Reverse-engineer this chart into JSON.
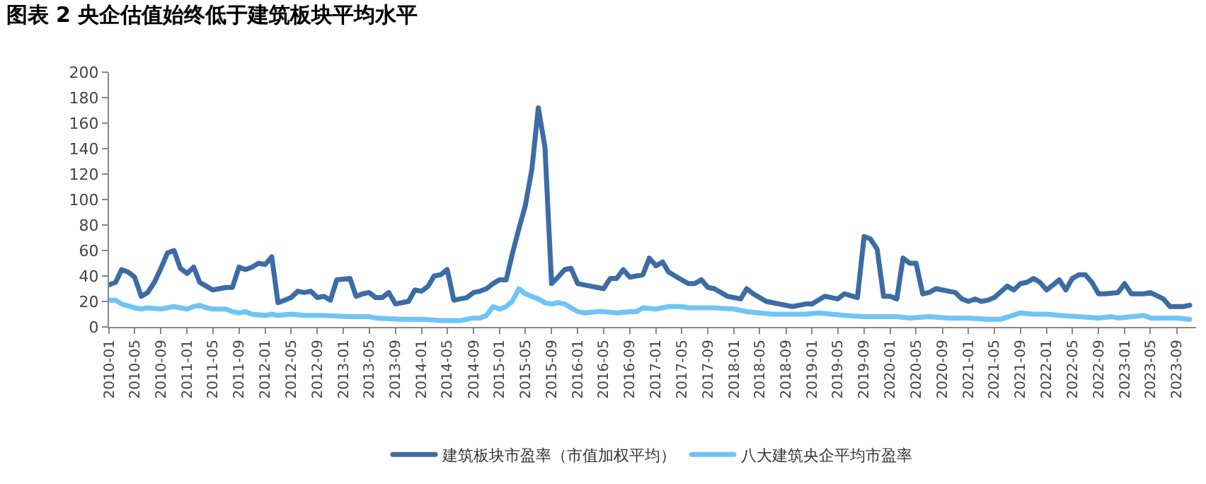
{
  "chart_data": {
    "type": "line",
    "title": "图表 2 央企估值始终低于建筑板块平均水平",
    "series": [
      {
        "name": "建筑板块市盈率（市值加权平均）",
        "color": "#3c6ca5",
        "x": [
          "2010-01",
          "2010-02",
          "2010-03",
          "2010-04",
          "2010-05",
          "2010-06",
          "2010-07",
          "2010-08",
          "2010-09",
          "2010-10",
          "2010-11",
          "2010-12",
          "2011-01",
          "2011-02",
          "2011-03",
          "2011-04",
          "2011-05",
          "2011-06",
          "2011-07",
          "2011-08",
          "2011-09",
          "2011-10",
          "2011-11",
          "2011-12",
          "2012-01",
          "2012-02",
          "2012-03",
          "2012-04",
          "2012-05",
          "2012-06",
          "2012-07",
          "2012-08",
          "2012-09",
          "2012-10",
          "2012-11",
          "2012-12",
          "2013-02",
          "2013-03",
          "2013-04",
          "2013-05",
          "2013-06",
          "2013-07",
          "2013-08",
          "2013-09",
          "2013-10",
          "2013-11",
          "2013-12",
          "2014-01",
          "2014-02",
          "2014-03",
          "2014-04",
          "2014-05",
          "2014-06",
          "2014-07",
          "2014-08",
          "2014-09",
          "2014-10",
          "2014-11",
          "2014-12",
          "2015-01",
          "2015-02",
          "2015-03",
          "2015-04",
          "2015-05",
          "2015-06",
          "2015-07",
          "2015-08",
          "2015-09",
          "2015-10",
          "2015-11",
          "2015-12",
          "2016-01",
          "2016-02",
          "2016-03",
          "2016-05",
          "2016-06",
          "2016-07",
          "2016-08",
          "2016-09",
          "2016-11",
          "2016-12",
          "2017-01",
          "2017-02",
          "2017-03",
          "2017-05",
          "2017-06",
          "2017-07",
          "2017-08",
          "2017-09",
          "2017-10",
          "2017-11",
          "2017-12",
          "2018-02",
          "2018-03",
          "2018-04",
          "2018-05",
          "2018-06",
          "2018-07",
          "2018-08",
          "2018-10",
          "2018-12",
          "2019-01",
          "2019-03",
          "2019-05",
          "2019-06",
          "2019-08",
          "2019-09",
          "2019-10",
          "2019-11",
          "2019-12",
          "2020-01",
          "2020-02",
          "2020-03",
          "2020-04",
          "2020-05",
          "2020-06",
          "2020-07",
          "2020-08",
          "2020-09",
          "2020-10",
          "2020-11",
          "2020-12",
          "2021-01",
          "2021-02",
          "2021-03",
          "2021-04",
          "2021-05",
          "2021-07",
          "2021-08",
          "2021-09",
          "2021-10",
          "2021-11",
          "2021-12",
          "2022-01",
          "2022-02",
          "2022-03",
          "2022-04",
          "2022-05",
          "2022-06",
          "2022-07",
          "2022-08",
          "2022-09",
          "2022-10",
          "2022-12",
          "2023-01",
          "2023-02",
          "2023-04",
          "2023-05",
          "2023-07",
          "2023-08",
          "2023-10",
          "2023-11"
        ],
        "values": [
          33,
          35,
          45,
          43,
          39,
          24,
          27,
          35,
          46,
          58,
          60,
          46,
          42,
          47,
          35,
          32,
          29,
          30,
          31,
          31,
          47,
          45,
          47,
          50,
          49,
          55,
          19,
          21,
          23,
          28,
          27,
          28,
          23,
          24,
          21,
          37,
          38,
          24,
          26,
          27,
          23,
          23,
          27,
          18,
          19,
          20,
          29,
          28,
          32,
          40,
          41,
          45,
          21,
          22,
          23,
          27,
          28,
          30,
          34,
          37,
          37,
          57,
          77,
          95,
          124,
          172,
          141,
          34,
          39,
          45,
          46,
          34,
          33,
          32,
          30,
          38,
          38,
          45,
          39,
          41,
          54,
          48,
          51,
          43,
          37,
          34,
          34,
          37,
          31,
          30,
          27,
          24,
          22,
          30,
          26,
          23,
          20,
          19,
          18,
          16,
          18,
          18,
          24,
          22,
          26,
          23,
          71,
          69,
          61,
          24,
          24,
          22,
          54,
          50,
          50,
          26,
          27,
          30,
          29,
          28,
          27,
          22,
          20,
          22,
          20,
          21,
          23,
          32,
          29,
          34,
          35,
          38,
          35,
          29,
          33,
          37,
          29,
          38,
          41,
          41,
          35,
          26,
          26,
          27,
          34,
          26,
          26,
          27,
          22,
          16,
          16,
          17
        ]
      },
      {
        "name": "八大建筑央企平均市盈率",
        "color": "#6fc4f5",
        "x": [
          "2010-01",
          "2010-02",
          "2010-03",
          "2010-05",
          "2010-06",
          "2010-07",
          "2010-09",
          "2010-10",
          "2010-11",
          "2010-12",
          "2011-01",
          "2011-02",
          "2011-03",
          "2011-04",
          "2011-05",
          "2011-06",
          "2011-07",
          "2011-08",
          "2011-09",
          "2011-10",
          "2011-11",
          "2012-01",
          "2012-02",
          "2012-03",
          "2012-05",
          "2012-07",
          "2012-10",
          "2013-02",
          "2013-05",
          "2013-06",
          "2013-10",
          "2014-01",
          "2014-04",
          "2014-07",
          "2014-09",
          "2014-10",
          "2014-11",
          "2014-12",
          "2015-01",
          "2015-02",
          "2015-03",
          "2015-04",
          "2015-05",
          "2015-07",
          "2015-08",
          "2015-09",
          "2015-10",
          "2015-11",
          "2016-01",
          "2016-02",
          "2016-04",
          "2016-05",
          "2016-07",
          "2016-09",
          "2016-10",
          "2016-11",
          "2017-01",
          "2017-03",
          "2017-05",
          "2017-06",
          "2017-08",
          "2017-10",
          "2018-01",
          "2018-03",
          "2018-05",
          "2018-07",
          "2018-10",
          "2018-12",
          "2019-02",
          "2019-04",
          "2019-06",
          "2019-09",
          "2019-11",
          "2020-02",
          "2020-04",
          "2020-07",
          "2020-10",
          "2021-01",
          "2021-04",
          "2021-06",
          "2021-09",
          "2021-11",
          "2022-01",
          "2022-03",
          "2022-06",
          "2022-09",
          "2022-11",
          "2022-12",
          "2023-04",
          "2023-05",
          "2023-09",
          "2023-11"
        ],
        "values": [
          21,
          21,
          18,
          15,
          14,
          15,
          14,
          15,
          16,
          15,
          14,
          16,
          17,
          15,
          14,
          14,
          14,
          12,
          11,
          12,
          10,
          9,
          10,
          9,
          10,
          9,
          9,
          8,
          8,
          7,
          6,
          6,
          5,
          5,
          7,
          7,
          9,
          16,
          14,
          16,
          20,
          30,
          26,
          22,
          19,
          18,
          19,
          18,
          12,
          11,
          12,
          12,
          11,
          12,
          12,
          15,
          14,
          16,
          16,
          15,
          15,
          15,
          14,
          12,
          11,
          10,
          10,
          10,
          11,
          10,
          9,
          8,
          8,
          8,
          7,
          8,
          7,
          7,
          6,
          6,
          11,
          10,
          10,
          9,
          8,
          7,
          8,
          7,
          9,
          7,
          7,
          6
        ]
      }
    ],
    "xlim": [
      "2010-01",
      "2023-12"
    ],
    "xticks": [
      "2010-01",
      "2010-05",
      "2010-09",
      "2011-01",
      "2011-05",
      "2011-09",
      "2012-01",
      "2012-05",
      "2012-09",
      "2013-01",
      "2013-05",
      "2013-09",
      "2014-01",
      "2014-05",
      "2014-09",
      "2015-01",
      "2015-05",
      "2015-09",
      "2016-01",
      "2016-05",
      "2016-09",
      "2017-01",
      "2017-05",
      "2017-09",
      "2018-01",
      "2018-05",
      "2018-09",
      "2019-01",
      "2019-05",
      "2019-09",
      "2020-01",
      "2020-05",
      "2020-09",
      "2021-01",
      "2021-05",
      "2021-09",
      "2022-01",
      "2022-05",
      "2022-09",
      "2023-01",
      "2023-05",
      "2023-09"
    ],
    "ylim": [
      0,
      200
    ],
    "yticks": [
      0,
      20,
      40,
      60,
      80,
      100,
      120,
      140,
      160,
      180,
      200
    ],
    "legend": "bottom",
    "marker": "none",
    "line_style": "solid"
  }
}
